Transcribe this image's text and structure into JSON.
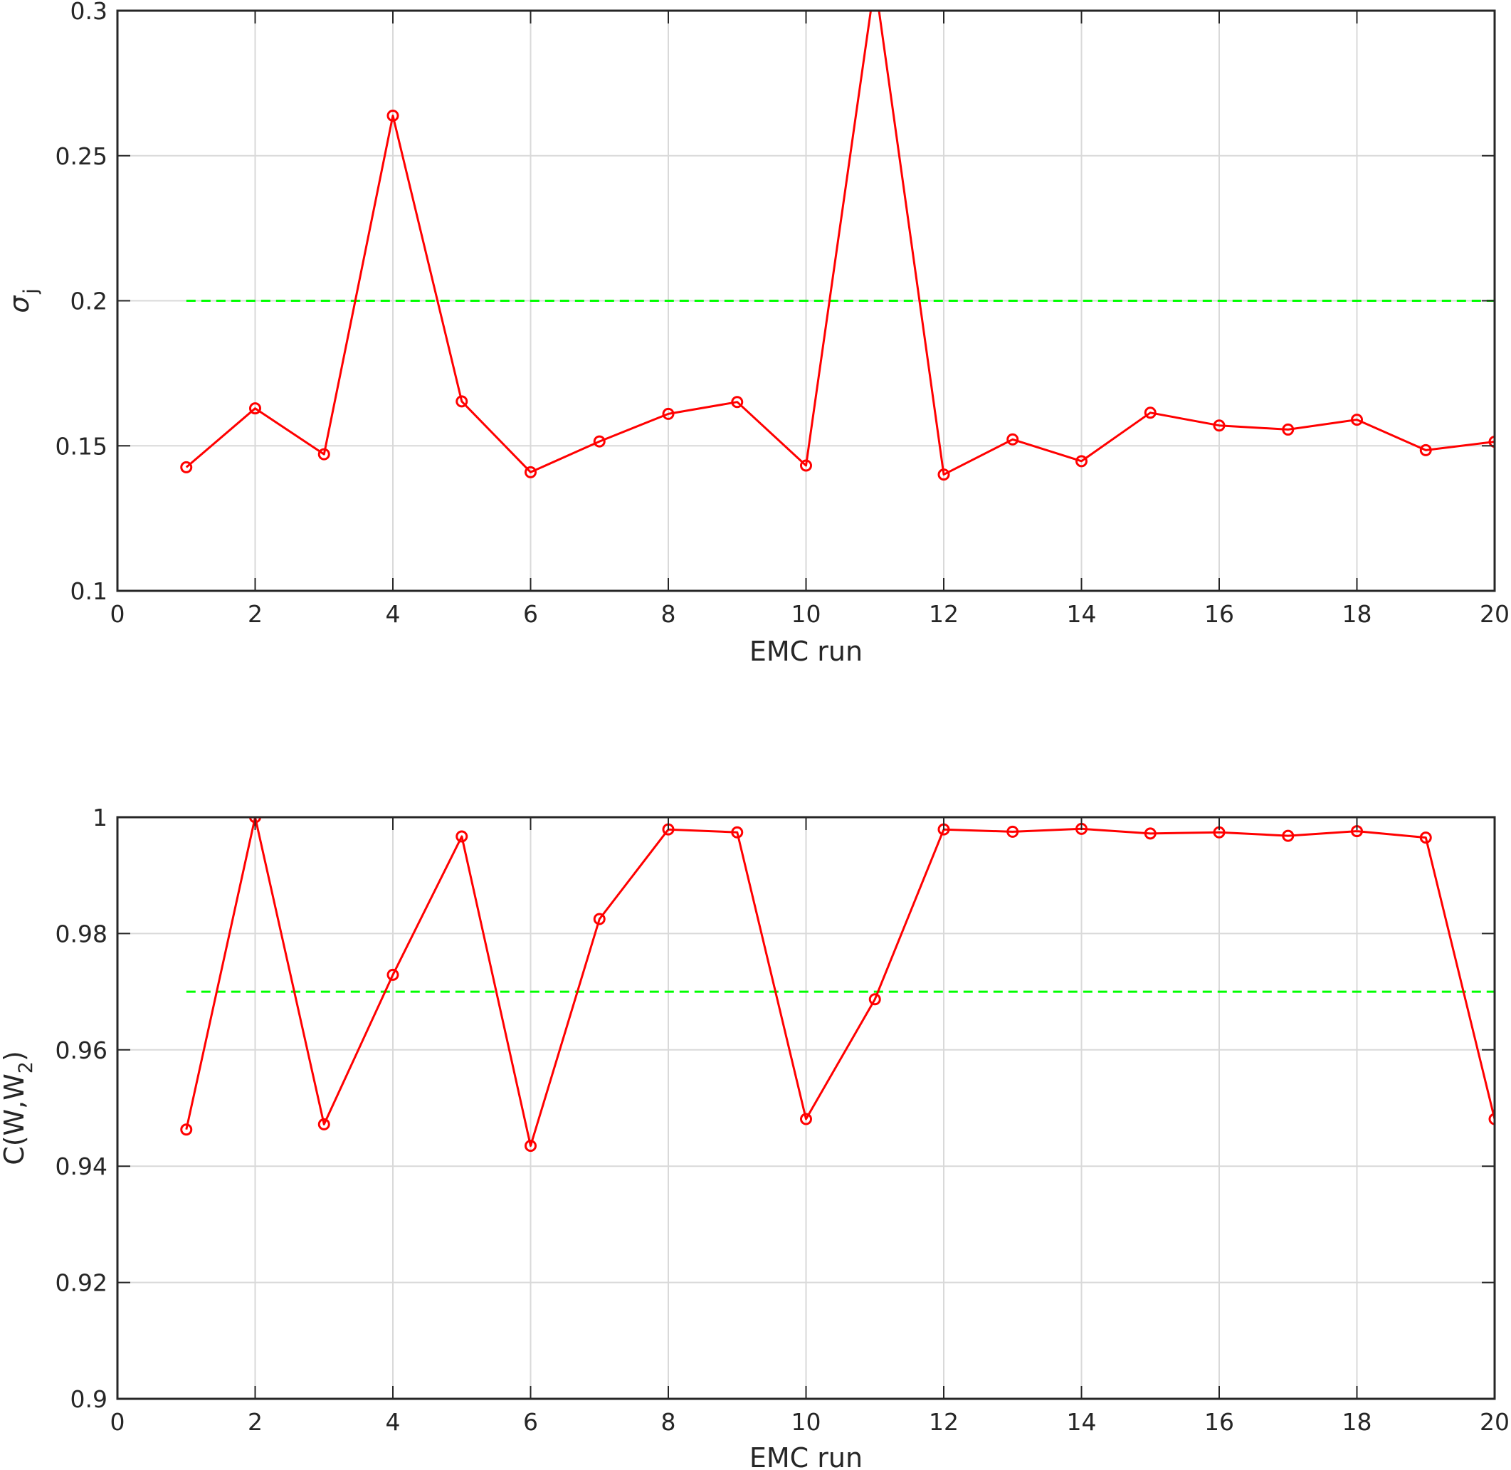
{
  "chart_data": [
    {
      "type": "line",
      "xlabel": "EMC run",
      "ylabel": {
        "main": "σ",
        "sub": "j"
      },
      "xlim": [
        0,
        20
      ],
      "ylim": [
        0.1,
        0.3
      ],
      "xticks": [
        "0",
        "2",
        "4",
        "6",
        "8",
        "10",
        "12",
        "14",
        "16",
        "18",
        "20"
      ],
      "yticks": [
        "0.1",
        "0.15",
        "0.2",
        "0.25",
        "0.3"
      ],
      "grid": true,
      "series": [
        {
          "style": "solid line with circle markers",
          "color": "#ff0000",
          "x": [
            1,
            2,
            3,
            4,
            5,
            6,
            7,
            8,
            9,
            10,
            11,
            12,
            13,
            14,
            15,
            16,
            17,
            18,
            19,
            20
          ],
          "y": [
            0.1426,
            0.1629,
            0.1471,
            0.2638,
            0.1653,
            0.1409,
            0.1515,
            0.161,
            0.1651,
            0.1432,
            0.31,
            0.1401,
            0.1522,
            0.1447,
            0.1614,
            0.157,
            0.1556,
            0.159,
            0.1485,
            0.1514
          ]
        },
        {
          "style": "dashed line",
          "color": "#00ff00",
          "x": [
            1,
            20
          ],
          "y": [
            0.2,
            0.2
          ]
        }
      ]
    },
    {
      "type": "line",
      "xlabel": "EMC run",
      "ylabel": {
        "main": "C(W,W",
        "sub": "2",
        "tail": ")"
      },
      "xlim": [
        0,
        20
      ],
      "ylim": [
        0.9,
        1.0
      ],
      "xticks": [
        "0",
        "2",
        "4",
        "6",
        "8",
        "10",
        "12",
        "14",
        "16",
        "18",
        "20"
      ],
      "yticks": [
        "0.9",
        "0.92",
        "0.94",
        "0.96",
        "0.98",
        "1"
      ],
      "grid": true,
      "series": [
        {
          "style": "solid line with circle markers",
          "color": "#ff0000",
          "x": [
            1,
            2,
            3,
            4,
            5,
            6,
            7,
            8,
            9,
            10,
            11,
            12,
            13,
            14,
            15,
            16,
            17,
            18,
            19,
            20
          ],
          "y": [
            0.9463,
            1.0,
            0.9472,
            0.9729,
            0.9967,
            0.9435,
            0.9825,
            0.9979,
            0.9974,
            0.9481,
            0.9687,
            0.9979,
            0.9975,
            0.998,
            0.9972,
            0.9974,
            0.9968,
            0.9976,
            0.9965,
            0.9481
          ]
        },
        {
          "style": "dashed line",
          "color": "#00ff00",
          "x": [
            1,
            20
          ],
          "y": [
            0.97,
            0.97
          ]
        }
      ]
    }
  ]
}
